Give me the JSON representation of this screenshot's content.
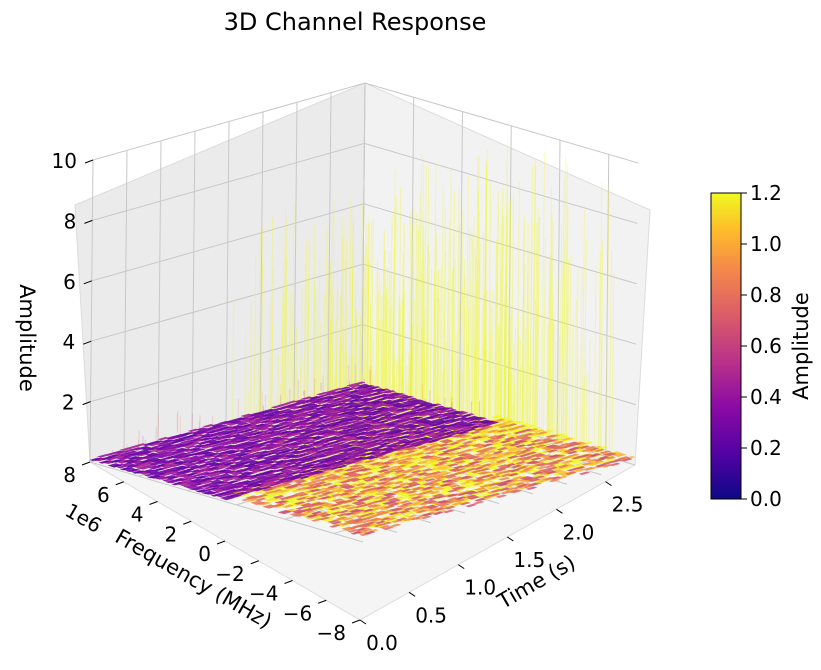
{
  "chart_data": {
    "type": "surface3d",
    "title": "3D Channel Response",
    "x_axis": {
      "label": "Time (s)",
      "ticks": [
        0.0,
        0.5,
        1.0,
        1.5,
        2.0,
        2.5
      ],
      "tick_labels": [
        "0.0",
        "0.5",
        "1.0",
        "1.5",
        "2.0",
        "2.5"
      ],
      "range": [
        0,
        2.8
      ]
    },
    "y_axis": {
      "label": "Frequency (MHz)",
      "offset_text": "1e6",
      "ticks": [
        8,
        6,
        4,
        2,
        0,
        -2,
        -4,
        -6,
        -8
      ],
      "tick_labels": [
        "8",
        "6",
        "4",
        "2",
        "0",
        "−2",
        "−4",
        "−6",
        "−8"
      ],
      "range": [
        -8,
        8
      ]
    },
    "z_axis": {
      "label": "Amplitude",
      "ticks": [
        2,
        4,
        6,
        8,
        10
      ],
      "tick_labels": [
        "2",
        "4",
        "6",
        "8",
        "10"
      ],
      "range": [
        0,
        10
      ]
    },
    "colorbar": {
      "label": "Amplitude",
      "colormap": "plasma",
      "range": [
        0.0,
        1.2
      ],
      "ticks": [
        0.0,
        0.2,
        0.4,
        0.6,
        0.8,
        1.0,
        1.2
      ],
      "tick_labels": [
        "0.0",
        "0.2",
        "0.4",
        "0.6",
        "0.8",
        "1.0",
        "1.2"
      ]
    },
    "surface": {
      "time_segments": [
        {
          "t_start": 0.0,
          "t_end": 1.4,
          "mean_amplitude": 0.35,
          "peak_amplitude": 1.0
        },
        {
          "t_start": 1.4,
          "t_end": 2.8,
          "mean_amplitude": 1.05,
          "peak_amplitude": 10.0
        }
      ]
    },
    "grid": true
  },
  "colors": {
    "pane_left": "#ebebeb",
    "pane_right": "#f2f2f2",
    "pane_floor": "#f5f5f5",
    "grid": "#c8c8c8"
  }
}
